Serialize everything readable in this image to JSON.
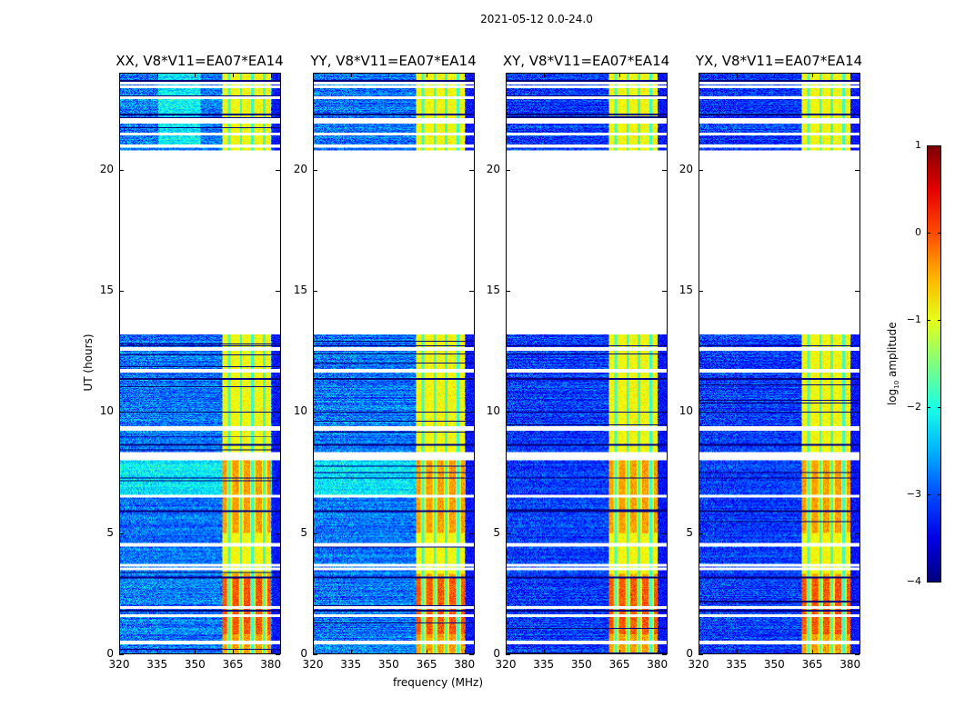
{
  "chart_data": {
    "type": "heatmap",
    "title": "2021-05-12 0.0-24.0",
    "xlabel": "frequency (MHz)",
    "ylabel": "UT (hours)",
    "xlim": [
      320,
      383.7
    ],
    "ylim": [
      0,
      24
    ],
    "xticks": [
      "320",
      "335",
      "350",
      "365",
      "380"
    ],
    "yticks": [
      "0",
      "5",
      "10",
      "15",
      "20"
    ],
    "panels": [
      {
        "title": "XX, V8*V11=EA07*EA14",
        "pol": "XX"
      },
      {
        "title": "YY, V8*V11=EA07*EA14",
        "pol": "YY"
      },
      {
        "title": "XY, V8*V11=EA07*EA14",
        "pol": "XY"
      },
      {
        "title": "YX, V8*V11=EA07*EA14",
        "pol": "YX"
      }
    ],
    "no_data_range_hours": [
      13.2,
      20.8
    ],
    "flagged_hours": [
      0.45,
      1.55,
      1.9,
      3.5,
      3.65,
      4.5,
      6.5,
      8.05,
      8.15,
      8.25,
      9.3,
      9.35,
      11.7,
      12.6,
      21.0,
      21.5,
      22.0,
      22.1,
      23.0,
      23.45,
      23.6
    ],
    "rfi_band_mhz": [
      360.5,
      380.0
    ],
    "rfi_gap_channels_mhz": [
      363.5,
      368.2,
      372.6,
      377.3
    ],
    "colorbar": {
      "label": "log10 amplitude",
      "label_main": "log",
      "label_sub": "10",
      "label_rest": " amplitude",
      "range": [
        -4,
        1
      ],
      "ticks": [
        "1",
        "0",
        "−1",
        "−2",
        "−3",
        "−4"
      ],
      "colormap": "jet"
    }
  }
}
